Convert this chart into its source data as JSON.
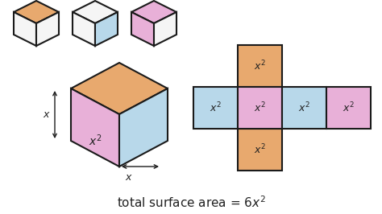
{
  "bg_color": "#ffffff",
  "orange_color": "#E8A96E",
  "blue_color": "#B8D8EA",
  "pink_color": "#E8B0D8",
  "border_color": "#1a1a1a",
  "text_color": "#222222",
  "net_colors_row": [
    "#B8D8EA",
    "#E8B0D8",
    "#B8D8EA",
    "#E8B0D8"
  ],
  "net_top_color": "#E8A96E",
  "net_bot_color": "#E8A96E"
}
